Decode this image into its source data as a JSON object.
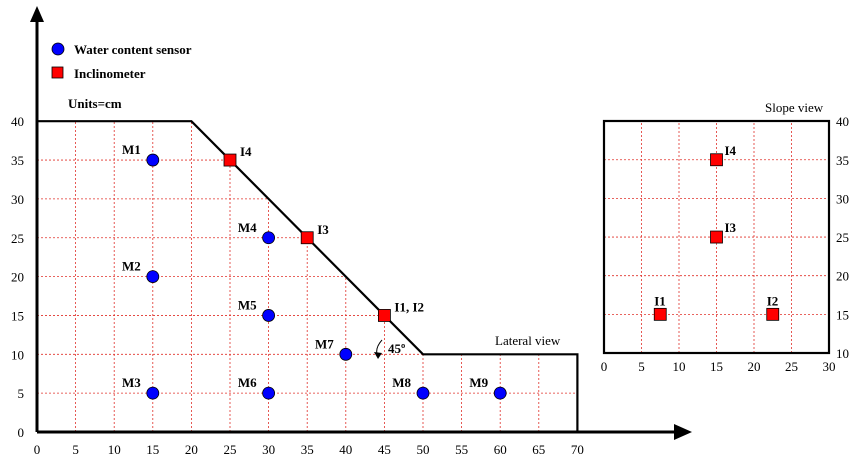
{
  "legend": {
    "water_sensor": "Water content sensor",
    "inclinometer": "Inclinometer"
  },
  "units": "Units=cm",
  "lateral_view_label": "Lateral view",
  "slope_view_label": "Slope view",
  "angle_label": "45º",
  "colors": {
    "sensor": "#0000ff",
    "inclinometer": "#ff0000",
    "grid": "#e0302a"
  },
  "lateral": {
    "x_ticks": [
      "0",
      "5",
      "10",
      "15",
      "20",
      "25",
      "30",
      "35",
      "40",
      "45",
      "50",
      "55",
      "60",
      "65",
      "70"
    ],
    "y_ticks": [
      "0",
      "5",
      "10",
      "15",
      "20",
      "25",
      "30",
      "35",
      "40"
    ],
    "profile": [
      [
        0,
        0
      ],
      [
        0,
        40
      ],
      [
        20,
        40
      ],
      [
        50,
        10
      ],
      [
        70,
        10
      ],
      [
        70,
        0
      ]
    ],
    "sensors": [
      {
        "name": "M1",
        "x": 15,
        "y": 35
      },
      {
        "name": "M2",
        "x": 15,
        "y": 20
      },
      {
        "name": "M3",
        "x": 15,
        "y": 5
      },
      {
        "name": "M4",
        "x": 30,
        "y": 25
      },
      {
        "name": "M5",
        "x": 30,
        "y": 15
      },
      {
        "name": "M6",
        "x": 30,
        "y": 5
      },
      {
        "name": "M7",
        "x": 40,
        "y": 10
      },
      {
        "name": "M8",
        "x": 50,
        "y": 5
      },
      {
        "name": "M9",
        "x": 60,
        "y": 5
      }
    ],
    "inclinometers": [
      {
        "name": "I4",
        "x": 25,
        "y": 35
      },
      {
        "name": "I3",
        "x": 35,
        "y": 25
      },
      {
        "name": "I1, I2",
        "x": 45,
        "y": 15
      }
    ]
  },
  "slope": {
    "x_ticks": [
      "0",
      "5",
      "10",
      "15",
      "20",
      "25",
      "30"
    ],
    "y_ticks": [
      "10",
      "15",
      "20",
      "25",
      "30",
      "35",
      "40"
    ],
    "inclinometers": [
      {
        "name": "I4",
        "x": 15,
        "y": 35
      },
      {
        "name": "I3",
        "x": 15,
        "y": 25
      },
      {
        "name": "I1",
        "x": 7.5,
        "y": 15
      },
      {
        "name": "I2",
        "x": 22.5,
        "y": 15
      }
    ]
  }
}
